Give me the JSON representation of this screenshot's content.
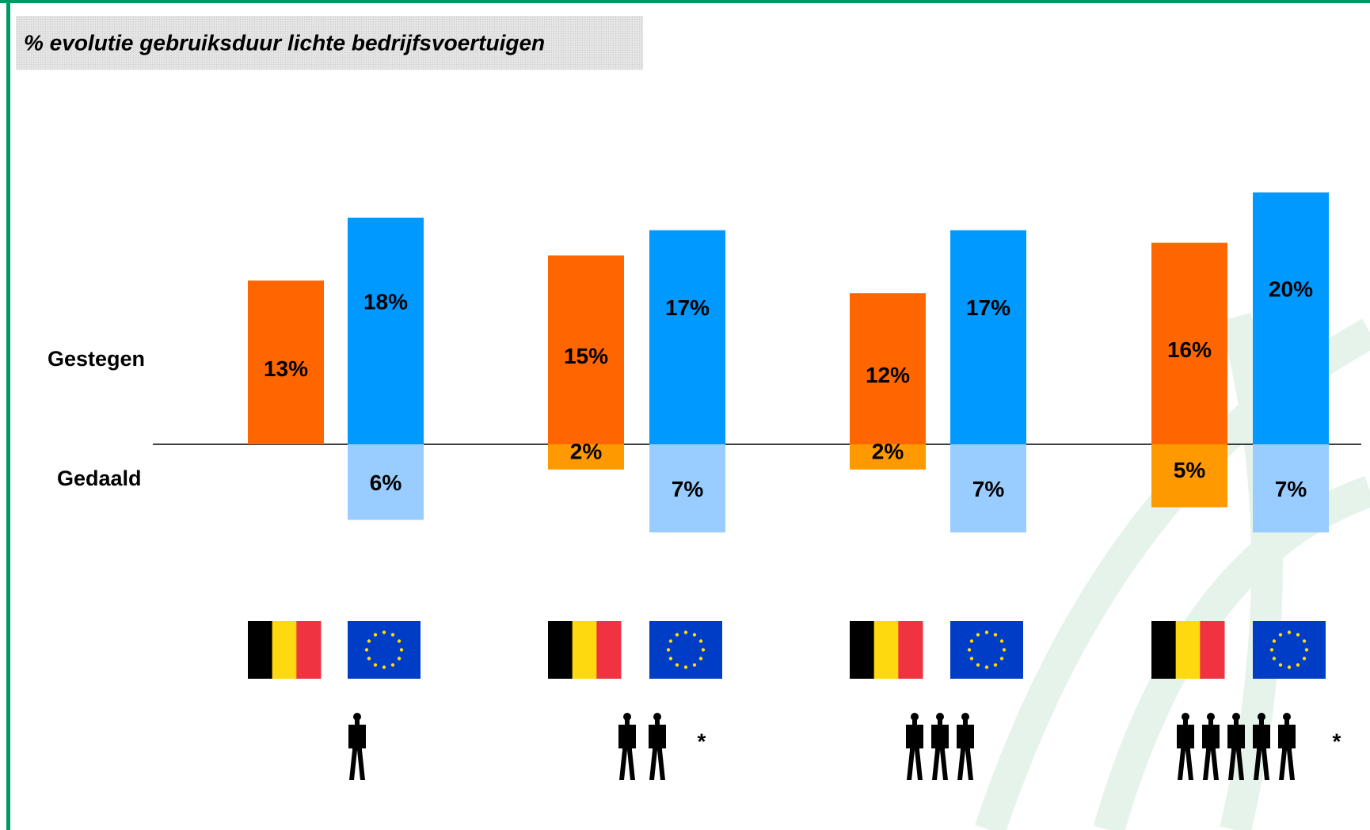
{
  "chart_data": {
    "type": "diverging-bar",
    "title": "% evolutie gebruiksduur lichte bedrijfsvoertuigen",
    "categories": [
      null,
      null,
      null,
      null,
      null,
      null,
      null,
      null
    ],
    "series": [
      {
        "name": "Gestegen",
        "colors": [
          "#ff6600",
          "#0099ff"
        ],
        "values": [
          13,
          18,
          15,
          17,
          12,
          17,
          16,
          20
        ],
        "value_labels": [
          "13%",
          "18%",
          "15%",
          "17%",
          "12%",
          "17%",
          "16%",
          "20%"
        ]
      },
      {
        "name": "Gedaald",
        "colors": [
          "#ff9900",
          "#99ccff"
        ],
        "values": [
          null,
          6,
          2,
          7,
          2,
          7,
          5,
          7
        ],
        "value_labels": [
          null,
          "6%",
          "2%",
          "7%",
          "2%",
          "7%",
          "5%",
          "7%"
        ]
      }
    ],
    "annotations": [
      {
        "text": "*"
      },
      {
        "text": "*"
      }
    ]
  }
}
